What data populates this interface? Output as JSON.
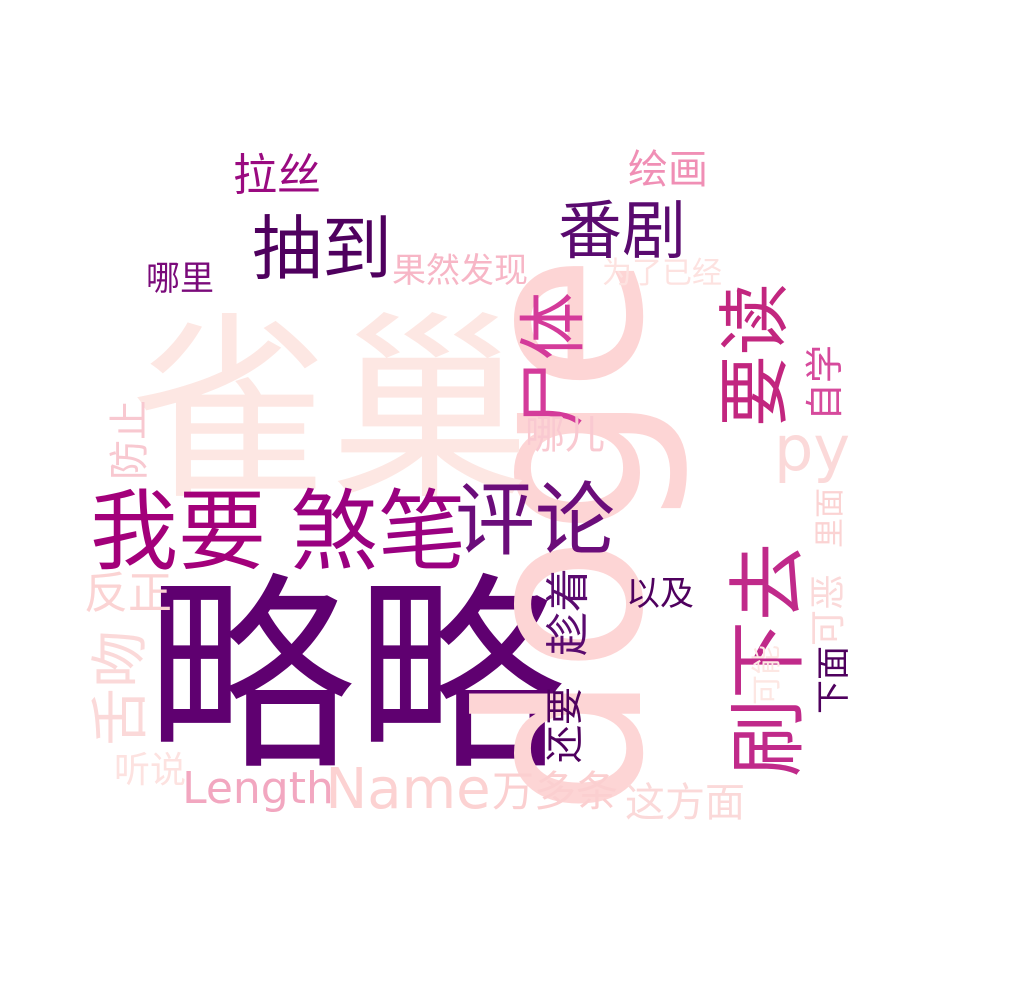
{
  "words": [
    {
      "text": "略略",
      "color": "#5f0070",
      "rotate": false
    },
    {
      "text": "doge",
      "color": "#fdd5d5",
      "rotate": true
    },
    {
      "text": "雀巢",
      "color": "#fde7e3",
      "rotate": false
    },
    {
      "text": "我要",
      "color": "#a3007a",
      "rotate": false
    },
    {
      "text": "煞笔",
      "color": "#9a0080",
      "rotate": false
    },
    {
      "text": "评论",
      "color": "#6b0d7a",
      "rotate": false
    },
    {
      "text": "抽到",
      "color": "#4f005e",
      "rotate": false
    },
    {
      "text": "番剧",
      "color": "#5a0a6f",
      "rotate": false
    },
    {
      "text": "尸体",
      "color": "#d43b9a",
      "rotate": true
    },
    {
      "text": "要读",
      "color": "#c2267f",
      "rotate": true
    },
    {
      "text": "刷下去",
      "color": "#c02a8a",
      "rotate": true
    },
    {
      "text": "py",
      "color": "#fbd9d9",
      "rotate": false
    },
    {
      "text": "Name",
      "color": "#fcd2d2",
      "rotate": false
    },
    {
      "text": "Length",
      "color": "#f2a7c0",
      "rotate": false
    },
    {
      "text": "万多条",
      "color": "#fbcfd0",
      "rotate": false
    },
    {
      "text": "这方面",
      "color": "#fbd9d9",
      "rotate": false
    },
    {
      "text": "舌吻",
      "color": "#fbd9d9",
      "rotate": true
    },
    {
      "text": "反正",
      "color": "#fbd3d3",
      "rotate": false
    },
    {
      "text": "防止",
      "color": "#f8c8d0",
      "rotate": true
    },
    {
      "text": "听说",
      "color": "#fde2e0",
      "rotate": false
    },
    {
      "text": "还要",
      "color": "#4f005e",
      "rotate": true
    },
    {
      "text": "趁着",
      "color": "#5a0a6f",
      "rotate": true
    },
    {
      "text": "以及",
      "color": "#4f005e",
      "rotate": false
    },
    {
      "text": "哪儿",
      "color": "#f9c9d1",
      "rotate": false
    },
    {
      "text": "下面",
      "color": "#4f005e",
      "rotate": true
    },
    {
      "text": "可能",
      "color": "#fde7e3",
      "rotate": true
    },
    {
      "text": "可恶",
      "color": "#fbd9d9",
      "rotate": true
    },
    {
      "text": "里面",
      "color": "#fbd3d3",
      "rotate": true
    },
    {
      "text": "自学",
      "color": "#d64a9c",
      "rotate": true
    },
    {
      "text": "为了已经",
      "color": "#fde2e0",
      "rotate": false
    },
    {
      "text": "果然发现",
      "color": "#f7b6c6",
      "rotate": false
    },
    {
      "text": "哪里",
      "color": "#7a0a7a",
      "rotate": false
    },
    {
      "text": "拉丝",
      "color": "#9a0a80",
      "rotate": false
    },
    {
      "text": "绘画",
      "color": "#f08fb5",
      "rotate": false
    }
  ]
}
